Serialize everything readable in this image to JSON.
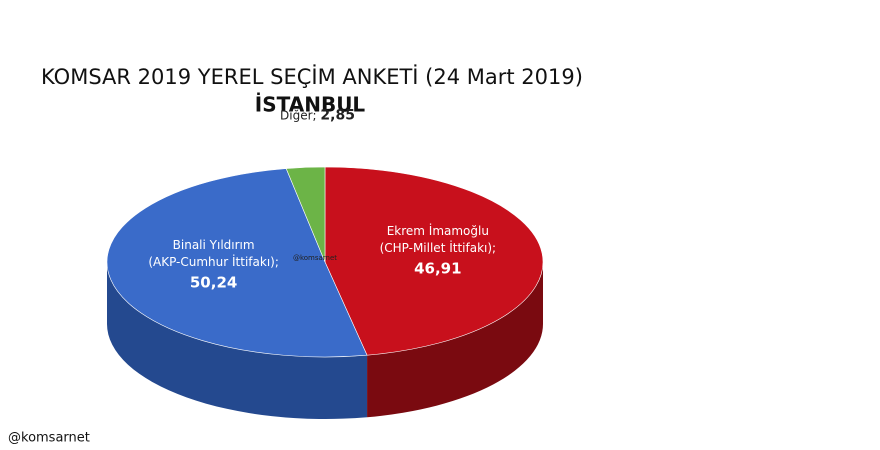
{
  "chart_data": {
    "type": "pie",
    "title": "KOMSAR 2019 YEREL SEÇİM ANKETİ (24 Mart 2019)",
    "subtitle": "İSTANBUL",
    "categories": [
      "Ekrem İmamoğlu (CHP-Millet İttifakı);",
      "Binali Yıldırım (AKP-Cumhur İttifakı);",
      "Diğer;"
    ],
    "values": [
      46.91,
      50.24,
      2.85
    ],
    "value_labels": [
      "46,91",
      "50,24",
      "2,85"
    ],
    "colors": [
      "#c8101c",
      "#3a6bc9",
      "#6cb447"
    ],
    "side_colors": [
      "#7a0a10",
      "#24498f",
      "#3f7a27"
    ],
    "annotations": [
      "@komsarnet",
      "@komsarnet"
    ]
  }
}
